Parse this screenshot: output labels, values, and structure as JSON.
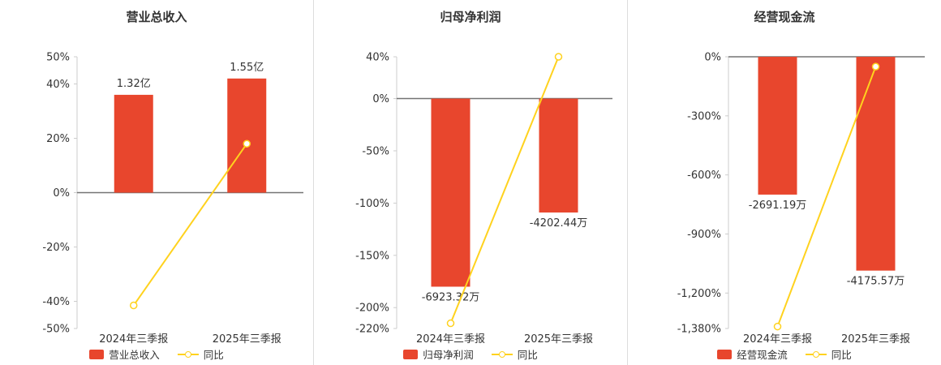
{
  "colors": {
    "bar": "#e8462d",
    "line": "#ffd21e",
    "marker_fill": "#ffffff",
    "zero_line": "#737373",
    "axis_line": "#cccccc",
    "divider": "#dddddd",
    "text": "#333333",
    "background": "#ffffff"
  },
  "chart_data": [
    {
      "type": "bar",
      "title": "营业总收入",
      "categories": [
        "2024年三季报",
        "2025年三季报"
      ],
      "ylim": [
        -50,
        50
      ],
      "y_ticks": [
        {
          "v": 50,
          "label": "50%"
        },
        {
          "v": 40,
          "label": "40%"
        },
        {
          "v": 20,
          "label": "20%"
        },
        {
          "v": 0,
          "label": "0%"
        },
        {
          "v": -20,
          "label": "-20%"
        },
        {
          "v": -40,
          "label": "-40%"
        },
        {
          "v": -50,
          "label": "-50%"
        }
      ],
      "series": [
        {
          "name": "营业总收入",
          "type": "bar",
          "value_labels": [
            "1.32亿",
            "1.55亿"
          ],
          "plotted_pct": [
            36,
            42
          ]
        },
        {
          "name": "同比",
          "type": "line",
          "values_pct": [
            -41.5,
            18
          ]
        }
      ],
      "legend_position": "bottom",
      "grid": false
    },
    {
      "type": "bar",
      "title": "归母净利润",
      "categories": [
        "2024年三季报",
        "2025年三季报"
      ],
      "ylim": [
        -220,
        40
      ],
      "y_ticks": [
        {
          "v": 40,
          "label": "40%"
        },
        {
          "v": 0,
          "label": "0%"
        },
        {
          "v": -50,
          "label": "-50%"
        },
        {
          "v": -100,
          "label": "-100%"
        },
        {
          "v": -150,
          "label": "-150%"
        },
        {
          "v": -200,
          "label": "-200%"
        },
        {
          "v": -220,
          "label": "-220%"
        }
      ],
      "series": [
        {
          "name": "归母净利润",
          "type": "bar",
          "value_labels": [
            "-6923.32万",
            "-4202.44万"
          ],
          "plotted_pct": [
            -180,
            -109
          ]
        },
        {
          "name": "同比",
          "type": "line",
          "values_pct": [
            -215,
            40
          ]
        }
      ],
      "legend_position": "bottom",
      "grid": false
    },
    {
      "type": "bar",
      "title": "经营现金流",
      "categories": [
        "2024年三季报",
        "2025年三季报"
      ],
      "ylim": [
        -1380,
        0
      ],
      "y_ticks": [
        {
          "v": 0,
          "label": "0%"
        },
        {
          "v": -300,
          "label": "-300%"
        },
        {
          "v": -600,
          "label": "-600%"
        },
        {
          "v": -900,
          "label": "-900%"
        },
        {
          "v": -1200,
          "label": "-1,200%"
        },
        {
          "v": -1380,
          "label": "-1,380%"
        }
      ],
      "series": [
        {
          "name": "经营现金流",
          "type": "bar",
          "value_labels": [
            "-2691.19万",
            "-4175.57万"
          ],
          "plotted_pct": [
            -700,
            -1086
          ]
        },
        {
          "name": "同比",
          "type": "line",
          "values_pct": [
            -1370,
            -50
          ]
        }
      ],
      "legend_position": "bottom",
      "grid": false
    }
  ]
}
